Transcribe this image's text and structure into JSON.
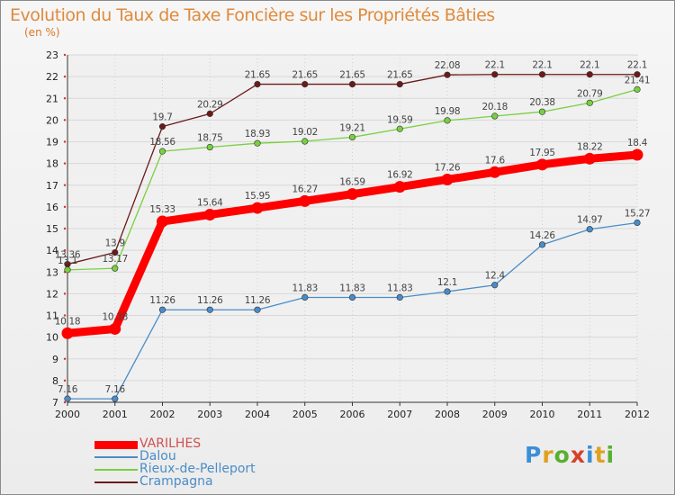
{
  "title": "Evolution du Taux de Taxe Foncière sur les Propriétés Bâties",
  "subtitle": "(en %)",
  "logo": {
    "text": "Proxiti",
    "colors": [
      "#3b8fd6",
      "#e0a020",
      "#58b030",
      "#d8402a",
      "#3b8fd6",
      "#e0a020",
      "#58b030"
    ]
  },
  "chart_data": {
    "type": "line",
    "x": [
      2000,
      2001,
      2002,
      2003,
      2004,
      2005,
      2006,
      2007,
      2008,
      2009,
      2010,
      2011,
      2012
    ],
    "ylim": [
      7,
      23
    ],
    "yticks": [
      7,
      8,
      9,
      10,
      11,
      12,
      13,
      14,
      15,
      16,
      17,
      18,
      19,
      20,
      21,
      22,
      23
    ],
    "grid": true,
    "legend_position": "bottom-left",
    "series": [
      {
        "name": "Crampagna",
        "color": "#6b1a1a",
        "values": [
          13.36,
          13.9,
          19.7,
          20.29,
          21.65,
          21.65,
          21.65,
          21.65,
          22.08,
          22.1,
          22.1,
          22.1,
          22.1
        ],
        "labels": [
          "13.36",
          "13.9",
          "19.7",
          "20.29",
          "21.65",
          "21.65",
          "21.65",
          "21.65",
          "22.08",
          "22.1",
          "22.1",
          "22.1",
          "22.1"
        ]
      },
      {
        "name": "Rieux-de-Pelleport",
        "color": "#78d040",
        "values": [
          13.1,
          13.17,
          18.56,
          18.75,
          18.93,
          19.02,
          19.21,
          19.59,
          19.98,
          20.18,
          20.38,
          20.79,
          21.41
        ],
        "labels": [
          "13.1",
          "13.17",
          "18.56",
          "18.75",
          "18.93",
          "19.02",
          "19.21",
          "19.59",
          "19.98",
          "20.18",
          "20.38",
          "20.79",
          "21.41"
        ]
      },
      {
        "name": "Dalou",
        "color": "#4a8cc8",
        "values": [
          7.16,
          7.16,
          11.26,
          11.26,
          11.26,
          11.83,
          11.83,
          11.83,
          12.1,
          12.4,
          14.26,
          14.97,
          15.27
        ],
        "labels": [
          "7.16",
          "7.16",
          "11.26",
          "11.26",
          "11.26",
          "11.83",
          "11.83",
          "11.83",
          "12.1",
          "12.4",
          "14.26",
          "14.97",
          "15.27"
        ]
      },
      {
        "name": "VARILHES",
        "color": "#ff0000",
        "values": [
          10.18,
          10.38,
          15.33,
          15.64,
          15.95,
          16.27,
          16.59,
          16.92,
          17.26,
          17.6,
          17.95,
          18.22,
          18.4
        ],
        "labels": [
          "10.18",
          "10.38",
          "15.33",
          "15.64",
          "15.95",
          "16.27",
          "16.59",
          "16.92",
          "17.26",
          "17.6",
          "17.95",
          "18.22",
          "18.4"
        ]
      }
    ],
    "legend": [
      {
        "name": "VARILHES",
        "color": "#ff0000",
        "label_color": "#d05050"
      },
      {
        "name": "Dalou",
        "color": "#4a8cc8",
        "label_color": "#4a8cc8"
      },
      {
        "name": "Rieux-de-Pelleport",
        "color": "#78d040",
        "label_color": "#4a8cc8"
      },
      {
        "name": "Crampagna",
        "color": "#6b1a1a",
        "label_color": "#4a8cc8"
      }
    ]
  }
}
